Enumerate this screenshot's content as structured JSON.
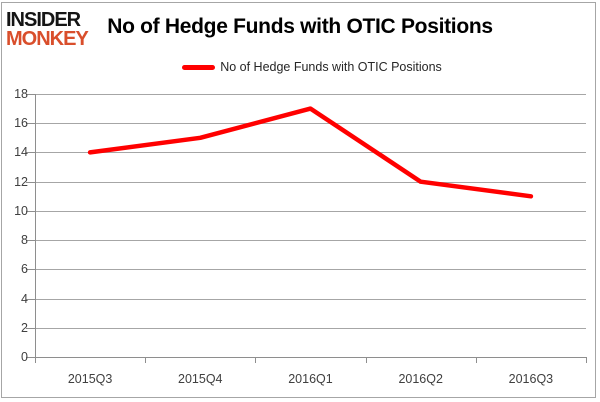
{
  "logo": {
    "line1": "INSIDER",
    "line2": "MONKEY"
  },
  "colors": {
    "line": "#ff0000",
    "logo_accent": "#d94e2b",
    "logo_primary": "#151515",
    "gridline": "#a6a6a6",
    "axis": "#8e8e8e",
    "tick_label": "#404040",
    "title": "#000000"
  },
  "legend": {
    "label": "No of Hedge Funds with OTIC Positions"
  },
  "chart_data": {
    "type": "line",
    "title": "No of Hedge Funds with OTIC Positions",
    "categories": [
      "2015Q3",
      "2015Q4",
      "2016Q1",
      "2016Q2",
      "2016Q3"
    ],
    "series": [
      {
        "name": "No of Hedge Funds with OTIC Positions",
        "values": [
          14,
          15,
          17,
          12,
          11
        ]
      }
    ],
    "xlabel": "",
    "ylabel": "",
    "ylim": [
      0,
      18
    ],
    "ytick_step": 2,
    "grid": "horizontal",
    "legend_position": "top"
  }
}
